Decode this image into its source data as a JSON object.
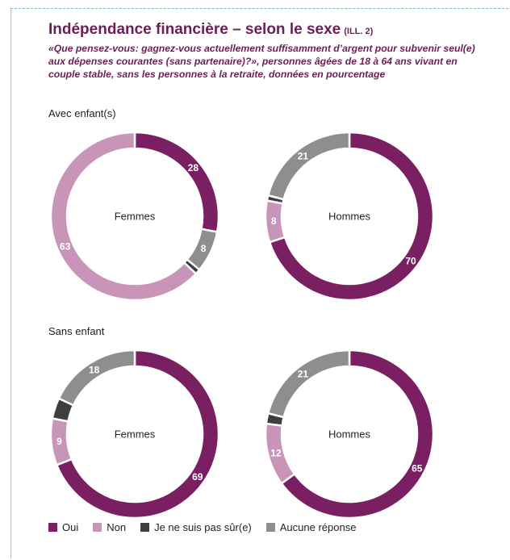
{
  "header": {
    "title": "Indépendance financière – selon le sexe",
    "ill": "(ILL. 2)",
    "subtitle": "«Que pensez-vous: gagnez-vous actuellement suffisamment d’argent pour subvenir seul(e) aux dépenses courantes (sans partenaire)?», personnes âgées de 18 à 64 ans vivant en couple stable, sans les personnes à la retraite, données en pourcentage"
  },
  "sections": [
    "Avec enfant(s)",
    "Sans enfant"
  ],
  "colors": {
    "Oui": "#7a1f62",
    "Non": "#c895b9",
    "Je ne suis pas sûr(e)": "#3e3e3e",
    "Aucune réponse": "#8e8e8e"
  },
  "chart_data": [
    {
      "type": "pie",
      "group": "Avec enfant(s)",
      "center_label": "Femmes",
      "categories": [
        "Oui",
        "Aucune réponse",
        "Je ne suis pas sûr(e)",
        "Non"
      ],
      "values": [
        28,
        8,
        1,
        63
      ],
      "labels": [
        "28",
        "8",
        "",
        "63"
      ]
    },
    {
      "type": "pie",
      "group": "Avec enfant(s)",
      "center_label": "Hommes",
      "categories": [
        "Oui",
        "Non",
        "Je ne suis pas sûr(e)",
        "Aucune réponse"
      ],
      "values": [
        70,
        8,
        1,
        21
      ],
      "labels": [
        "70",
        "8",
        "",
        "21"
      ]
    },
    {
      "type": "pie",
      "group": "Sans enfant",
      "center_label": "Femmes",
      "categories": [
        "Oui",
        "Non",
        "Je ne suis pas sûr(e)",
        "Aucune réponse"
      ],
      "values": [
        69,
        9,
        4,
        18
      ],
      "labels": [
        "69",
        "9",
        "",
        "18"
      ]
    },
    {
      "type": "pie",
      "group": "Sans enfant",
      "center_label": "Hommes",
      "categories": [
        "Oui",
        "Non",
        "Je ne suis pas sûr(e)",
        "Aucune réponse"
      ],
      "values": [
        65,
        12,
        2,
        21
      ],
      "labels": [
        "65",
        "12",
        "",
        "21"
      ]
    }
  ],
  "legend": [
    {
      "label": "Oui"
    },
    {
      "label": "Non"
    },
    {
      "label": "Je ne suis pas sûr(e)"
    },
    {
      "label": "Aucune réponse"
    }
  ]
}
